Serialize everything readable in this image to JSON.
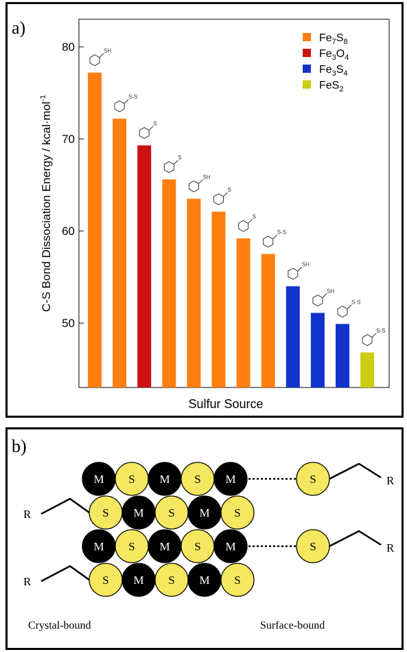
{
  "panel_a": {
    "letter": "a)"
  },
  "panel_b": {
    "letter": "b)"
  },
  "chart_data": {
    "type": "bar",
    "xlabel": "Sulfur Source",
    "ylabel": "C-S Bond Dissociation Energy / kcal·mol",
    "ylabel_superscript": "-1",
    "ylim": [
      43,
      83
    ],
    "yticks": [
      50,
      60,
      70,
      80
    ],
    "grid": false,
    "legend_position": "top-right",
    "legend": [
      {
        "base": "Fe",
        "sub1": "7",
        "mid": "S",
        "sub2": "8",
        "color": "#ff7f10"
      },
      {
        "base": "Fe",
        "sub1": "3",
        "mid": "O",
        "sub2": "4",
        "color": "#cc1111"
      },
      {
        "base": "Fe",
        "sub1": "3",
        "mid": "S",
        "sub2": "4",
        "color": "#1133cc"
      },
      {
        "base": "Fe",
        "sub1": "",
        "mid": "S",
        "sub2": "2",
        "color": "#cccc11"
      }
    ],
    "values": [
      77.2,
      72.2,
      69.3,
      65.6,
      63.5,
      62.1,
      59.2,
      57.5,
      54.0,
      51.1,
      49.9,
      46.8
    ],
    "bar_colors": [
      "#ff7f10",
      "#ff7f10",
      "#cc1111",
      "#ff7f10",
      "#ff7f10",
      "#ff7f10",
      "#ff7f10",
      "#ff7f10",
      "#1133cc",
      "#1133cc",
      "#1133cc",
      "#cccc11"
    ],
    "structure_labels": [
      "SH",
      "S-S",
      "S",
      "S",
      "SH",
      "S",
      "S",
      "S-S",
      "SH",
      "SH",
      "S-S",
      "S-S"
    ]
  },
  "lattice": {
    "metal_symbol": "M",
    "sulfur_symbol": "S",
    "rows": [
      [
        "M",
        "S",
        "M",
        "S",
        "M"
      ],
      [
        "S",
        "M",
        "S",
        "M",
        "S"
      ],
      [
        "M",
        "S",
        "M",
        "S",
        "M"
      ],
      [
        "S",
        "M",
        "S",
        "M",
        "S"
      ]
    ],
    "r_label": "R",
    "crystal_bound_label": "Crystal-bound",
    "surface_bound_label": "Surface-bound",
    "colors": {
      "metal": "#000000",
      "sulfur": "#f5e860"
    }
  }
}
